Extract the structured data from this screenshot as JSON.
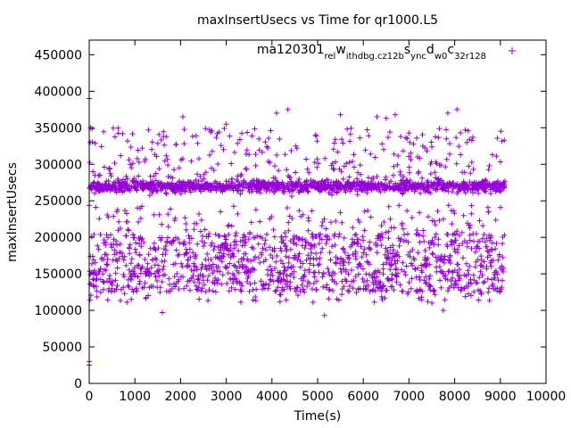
{
  "chart_data": {
    "type": "scatter",
    "title": "maxInsertUsecs vs Time for qr1000.L5",
    "xlabel": "Time(s)",
    "ylabel": "maxInsertUsecs",
    "xlim": [
      0,
      10000
    ],
    "ylim": [
      0,
      470000
    ],
    "xticks": [
      0,
      1000,
      2000,
      3000,
      4000,
      5000,
      6000,
      7000,
      8000,
      9000,
      10000
    ],
    "yticks": [
      0,
      50000,
      100000,
      150000,
      200000,
      250000,
      300000,
      350000,
      400000,
      450000
    ],
    "xtick_labels": [
      "0",
      "1000",
      "2000",
      "3000",
      "4000",
      "5000",
      "6000",
      "7000",
      "8000",
      "9000",
      "10000"
    ],
    "ytick_labels": [
      "0",
      "50000",
      "100000",
      "150000",
      "200000",
      "250000",
      "300000",
      "350000",
      "400000",
      "450000"
    ],
    "grid": false,
    "legend_position": "top-right",
    "series": [
      {
        "name": "ma120301_rel_withdbg.cz12b_sync_dw0_c32r128",
        "legend_segments": [
          {
            "t": "ma120301",
            "sub": false
          },
          {
            "t": "rel",
            "sub": true
          },
          {
            "t": "w",
            "sub": false
          },
          {
            "t": "ithdbg.cz12b",
            "sub": true
          },
          {
            "t": "s",
            "sub": false
          },
          {
            "t": "ync",
            "sub": true
          },
          {
            "t": "d",
            "sub": false
          },
          {
            "t": "w0",
            "sub": true
          },
          {
            "t": "c",
            "sub": false
          },
          {
            "t": "32r128",
            "sub": true
          }
        ],
        "color": "#9400d3",
        "marker": "+",
        "x_range": [
          0,
          9100
        ],
        "distribution": {
          "dense_band": {
            "center": 270000,
            "spread": 8000,
            "fraction": 0.42
          },
          "lower_cloud": {
            "min": 110000,
            "max": 245000,
            "fraction": 0.48
          },
          "upper_scatter": {
            "min": 280000,
            "max": 350000,
            "fraction": 0.1
          }
        },
        "notable_points": [
          {
            "x": 0,
            "y": 25000
          },
          {
            "x": 0,
            "y": 30000
          },
          {
            "x": 0,
            "y": 390000
          },
          {
            "x": 20,
            "y": 330000
          },
          {
            "x": 30,
            "y": 350000
          },
          {
            "x": 1600,
            "y": 97000
          },
          {
            "x": 2050,
            "y": 365000
          },
          {
            "x": 3000,
            "y": 355000
          },
          {
            "x": 4100,
            "y": 370000
          },
          {
            "x": 4350,
            "y": 375000
          },
          {
            "x": 5150,
            "y": 93000
          },
          {
            "x": 5500,
            "y": 368000
          },
          {
            "x": 6300,
            "y": 365000
          },
          {
            "x": 6500,
            "y": 363000
          },
          {
            "x": 6700,
            "y": 368000
          },
          {
            "x": 7750,
            "y": 100000
          },
          {
            "x": 7850,
            "y": 370000
          },
          {
            "x": 8050,
            "y": 375000
          }
        ]
      }
    ]
  }
}
